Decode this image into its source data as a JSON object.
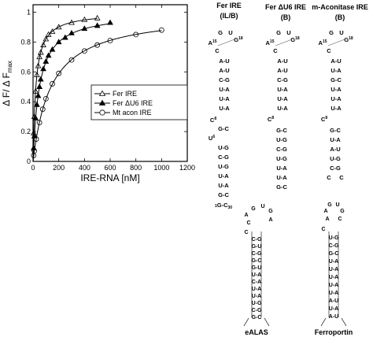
{
  "chart_data": {
    "type": "line",
    "xlabel": "IRE-RNA  [nM]",
    "ylabel_main": "Δ F/ Δ F",
    "ylabel_sub": "max",
    "xlim": [
      0,
      1200
    ],
    "ylim": [
      0,
      1.05
    ],
    "x_ticks": [
      0,
      200,
      400,
      600,
      800,
      1000,
      1200
    ],
    "y_ticks": [
      0,
      0.2,
      0.4,
      0.6,
      0.8,
      1
    ],
    "y_tick_labels": [
      "0",
      "0.2",
      "0.4",
      "0.6",
      "0.8",
      "1"
    ],
    "legend_position": "center-right",
    "series": [
      {
        "name": "Fer IRE",
        "marker": "triangle-open",
        "kd": 22,
        "x": [
          5,
          10,
          20,
          30,
          40,
          50,
          60,
          80,
          100,
          120,
          150,
          200,
          300,
          400,
          500
        ],
        "y": [
          0.19,
          0.3,
          0.47,
          0.58,
          0.64,
          0.7,
          0.73,
          0.78,
          0.82,
          0.85,
          0.87,
          0.9,
          0.93,
          0.95,
          0.96
        ]
      },
      {
        "name": "Fer  ΔU6 IRE",
        "marker": "triangle-filled",
        "kd": 50,
        "x": [
          5,
          10,
          20,
          30,
          40,
          50,
          60,
          80,
          100,
          120,
          150,
          200,
          250,
          300,
          400,
          500,
          600
        ],
        "y": [
          0.09,
          0.17,
          0.29,
          0.38,
          0.44,
          0.5,
          0.55,
          0.62,
          0.67,
          0.71,
          0.75,
          0.8,
          0.83,
          0.86,
          0.89,
          0.91,
          0.93
        ]
      },
      {
        "name": "Mt acon IRE",
        "marker": "circle-open",
        "kd": 140,
        "x": [
          5,
          10,
          25,
          50,
          75,
          100,
          150,
          200,
          300,
          400,
          500,
          600,
          800,
          1000
        ],
        "y": [
          0.04,
          0.07,
          0.15,
          0.26,
          0.35,
          0.42,
          0.52,
          0.59,
          0.68,
          0.74,
          0.78,
          0.81,
          0.85,
          0.88
        ]
      }
    ]
  },
  "structures": {
    "fer_ire": {
      "title_line1": "Fer IRE",
      "title_line2": "(IL/B)",
      "loop_g1": "G",
      "loop_u": "U",
      "a15": "A",
      "a15_num": "15",
      "g18": "G",
      "g18_num": "18",
      "c_pair": "C",
      "upper_stem": [
        "A-U",
        "A-U",
        "C-G",
        "U-A",
        "U-A",
        "U-A"
      ],
      "c8": "C",
      "c8_num": "8",
      "mid_pair": "G-C",
      "u6": "U",
      "u6_num": "6",
      "lower_stem": [
        "U-G",
        "C-G",
        "U-G",
        "U-A",
        "U-A",
        "G-C"
      ],
      "last_pair_prefix": "1",
      "last_pair": "G-C",
      "last_pair_suffix": "30"
    },
    "fer_du6_ire": {
      "title_line1": "Fer ΔU6 IRE",
      "title_line2": "(B)",
      "loop_g": "G",
      "loop_u": "U",
      "a15": "A",
      "a15_num": "15",
      "g18": "G",
      "g18_num": "18",
      "c_pair": "C",
      "upper_stem": [
        "A-U",
        "A-U",
        "C-G",
        "U-A",
        "U-A",
        "U-A"
      ],
      "c8": "C",
      "c8_num": "8",
      "lower_stem": [
        "G-C",
        "U-G",
        "C-G",
        "U-G",
        "U-A",
        "U-A",
        "G-C"
      ]
    },
    "m_aconitase_ire": {
      "title_line1": "m-Aconitase IRE",
      "title_line2": "(B)",
      "loop_g": "G",
      "loop_u": "U",
      "a15": "A",
      "a15_num": "15",
      "g18": "G",
      "g18_num": "18",
      "c_pair": "C",
      "upper_stem": [
        "A-U",
        "U-A",
        "G-C",
        "U-A",
        "U-A",
        "U-A"
      ],
      "c8": "C",
      "c8_num": "8",
      "lower_stem": [
        "G-C",
        "U-A",
        "A-U",
        "U-G",
        "C-G",
        "C",
        "C"
      ]
    },
    "ealas": {
      "title": "eALAS",
      "loop": [
        "G",
        "U",
        "G",
        "A",
        "C",
        "A"
      ],
      "bulge_c": "C",
      "stem": [
        "C-G",
        "G-U",
        "C-G",
        "G-C",
        "G-U",
        "U-A",
        "C-A",
        "U-A",
        "U-A",
        "U-G",
        "C-G",
        "G-C"
      ]
    },
    "ferroportin": {
      "title": "Ferroportin",
      "loop": [
        "A",
        "G",
        "U",
        "G",
        "A",
        "C"
      ],
      "bulge_c": "C",
      "stem": [
        "U-G",
        "C-G",
        "G-C",
        "U-A",
        "U-A",
        "U-A",
        "U-A",
        "U-A",
        "A-U",
        "U-A",
        "A-U"
      ]
    }
  }
}
